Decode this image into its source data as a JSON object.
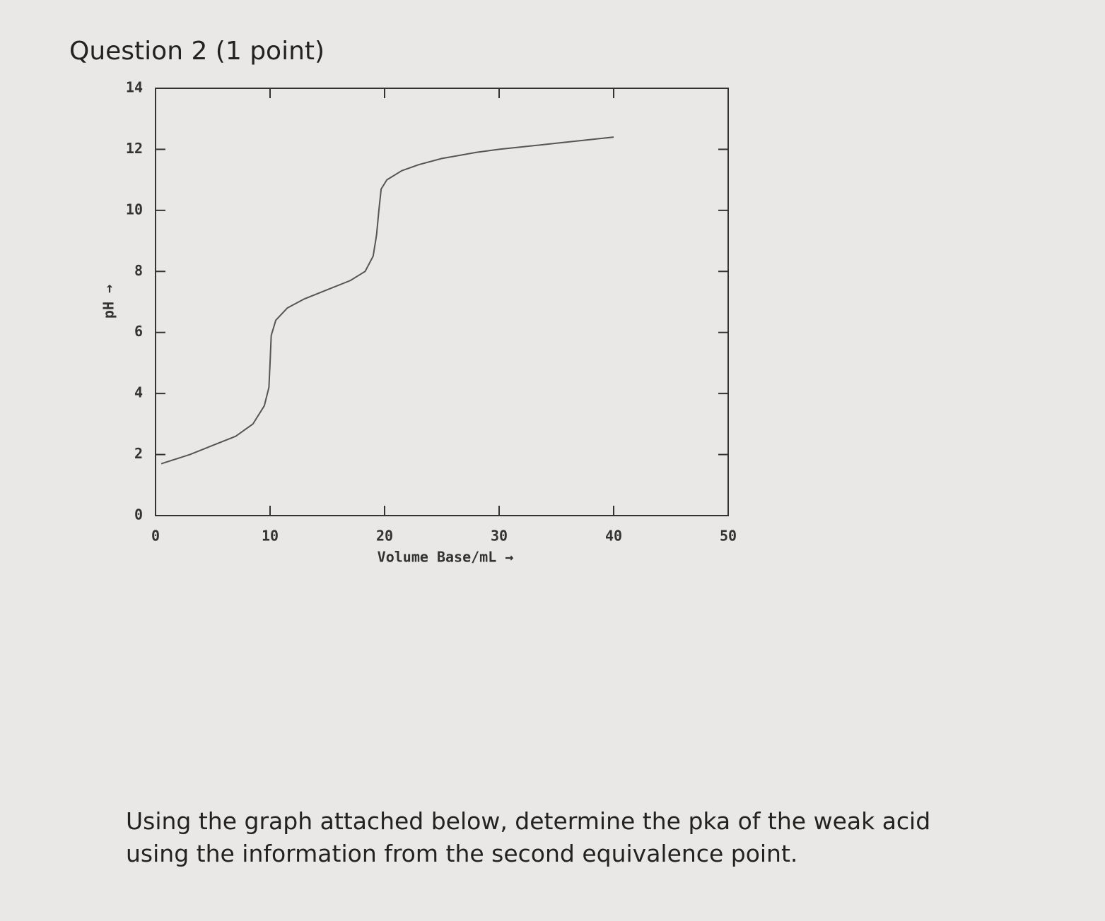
{
  "question_title": "Question 2 (1 point)",
  "question_text": "Using the graph attached below, determine the pka of the weak acid using the information from the second equivalence point.",
  "chart_data": {
    "type": "line",
    "xlabel": "Volume Base/mL →",
    "ylabel": "pH →",
    "xlim": [
      0,
      50
    ],
    "ylim": [
      0,
      14
    ],
    "xticks": [
      0,
      10,
      20,
      30,
      40,
      50
    ],
    "yticks": [
      0,
      2,
      4,
      6,
      8,
      10,
      12,
      14
    ],
    "series": [
      {
        "name": "pH",
        "color": "#555555",
        "x": [
          0.5,
          3,
          5,
          7,
          8.5,
          9.5,
          9.9,
          10,
          10.1,
          10.5,
          11.5,
          13,
          15,
          17,
          18.3,
          19,
          19.3,
          19.5,
          19.7,
          20.2,
          21.5,
          23,
          25,
          28,
          30,
          35,
          40
        ],
        "values": [
          1.7,
          2.0,
          2.3,
          2.6,
          3.0,
          3.6,
          4.2,
          5.0,
          5.9,
          6.4,
          6.8,
          7.1,
          7.4,
          7.7,
          8.0,
          8.5,
          9.2,
          10.0,
          10.7,
          11.0,
          11.3,
          11.5,
          11.7,
          11.9,
          12.0,
          12.2,
          12.4
        ]
      }
    ]
  }
}
